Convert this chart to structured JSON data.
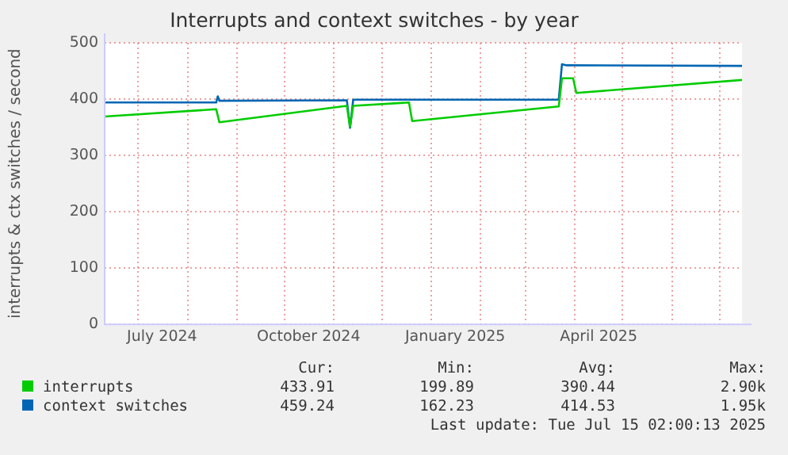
{
  "chart_data": {
    "type": "line",
    "title": "Interrupts and context switches - by year",
    "ylabel": "interrupts & ctx switches / second",
    "xlim": [
      "2024-06-10",
      "2025-07-15"
    ],
    "xticks": [
      {
        "value": "2024-07-01",
        "label": null
      },
      {
        "value": "2024-07-16",
        "label": "July 2024"
      },
      {
        "value": "2024-08-01",
        "label": null
      },
      {
        "value": "2024-09-01",
        "label": null
      },
      {
        "value": "2024-10-01",
        "label": null
      },
      {
        "value": "2024-10-16",
        "label": "October 2024"
      },
      {
        "value": "2024-11-01",
        "label": null
      },
      {
        "value": "2024-12-01",
        "label": null
      },
      {
        "value": "2025-01-01",
        "label": null
      },
      {
        "value": "2025-01-16",
        "label": "January 2025"
      },
      {
        "value": "2025-02-01",
        "label": null
      },
      {
        "value": "2025-03-01",
        "label": null
      },
      {
        "value": "2025-04-01",
        "label": null
      },
      {
        "value": "2025-04-16",
        "label": "April 2025"
      },
      {
        "value": "2025-05-01",
        "label": null
      },
      {
        "value": "2025-06-01",
        "label": null
      },
      {
        "value": "2025-07-01",
        "label": null
      }
    ],
    "ylim": [
      0,
      500
    ],
    "yticks": [
      0,
      100,
      200,
      300,
      400,
      500
    ],
    "grid": true,
    "legend": "bottom",
    "marker": "none",
    "series": [
      {
        "name": "interrupts",
        "color": "#00cc00",
        "x": [
          "2024-06-10",
          "2024-08-19",
          "2024-08-21",
          "2024-11-09",
          "2024-11-11",
          "2024-11-13",
          "2024-12-18",
          "2024-12-20",
          "2025-03-22",
          "2025-03-24",
          "2025-03-31",
          "2025-04-02",
          "2025-07-15"
        ],
        "values": [
          369,
          382,
          359,
          388,
          351,
          388,
          394,
          361,
          387,
          437,
          437,
          411,
          434
        ]
      },
      {
        "name": "context switches",
        "color": "#0066b3",
        "x": [
          "2024-06-10",
          "2024-08-19",
          "2024-08-20",
          "2024-08-21",
          "2024-11-09",
          "2024-11-11",
          "2024-11-13",
          "2025-03-22",
          "2025-03-24",
          "2025-03-27",
          "2025-07-15"
        ],
        "values": [
          394,
          394,
          405,
          397,
          398,
          349,
          399,
          399,
          462,
          460,
          459
        ]
      }
    ],
    "annotations": [
      "Cur:",
      "Min:",
      "Avg:",
      "Max:",
      "433.91",
      "199.89",
      "390.44",
      "2.90k",
      "459.24",
      "162.23",
      "414.53",
      "1.95k",
      "Last update: Tue Jul 15 02:00:13 2025"
    ]
  }
}
